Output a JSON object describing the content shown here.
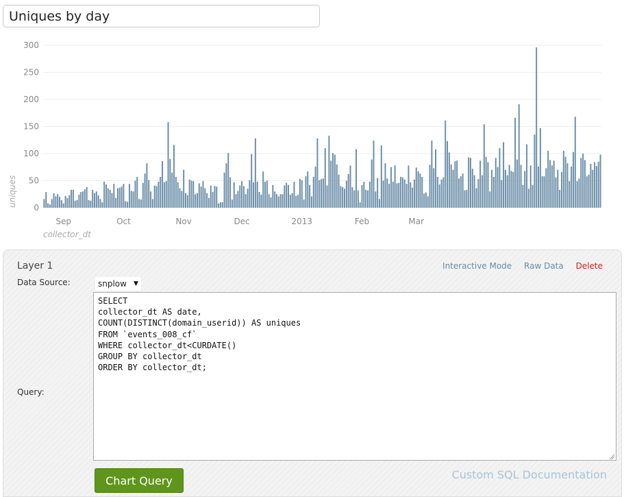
{
  "title_input": {
    "value": "Uniques by day"
  },
  "chart_data": {
    "type": "bar",
    "bar_color": "#6b8ea8",
    "grid": true,
    "ylabel": "uniques",
    "xlabel": "collector_dt",
    "ylim": [
      0,
      300
    ],
    "y_ticks": [
      "0",
      "50",
      "100",
      "150",
      "200",
      "250",
      "300"
    ],
    "x_tick_labels": [
      {
        "label": "Sep",
        "index": 10
      },
      {
        "label": "Oct",
        "index": 41
      },
      {
        "label": "Nov",
        "index": 72
      },
      {
        "label": "Dec",
        "index": 102
      },
      {
        "label": "2013",
        "index": 133
      },
      {
        "label": "Feb",
        "index": 164
      },
      {
        "label": "Mar",
        "index": 192
      }
    ],
    "values": [
      16,
      29,
      8,
      6,
      16,
      27,
      21,
      25,
      20,
      14,
      8,
      22,
      18,
      23,
      33,
      33,
      13,
      14,
      24,
      29,
      30,
      34,
      38,
      14,
      13,
      33,
      27,
      30,
      23,
      16,
      10,
      48,
      43,
      36,
      33,
      27,
      44,
      18,
      36,
      37,
      39,
      44,
      12,
      11,
      44,
      31,
      30,
      50,
      57,
      16,
      15,
      46,
      63,
      82,
      51,
      30,
      16,
      41,
      40,
      48,
      57,
      86,
      47,
      49,
      158,
      90,
      65,
      116,
      57,
      47,
      36,
      31,
      70,
      27,
      23,
      52,
      50,
      49,
      25,
      27,
      45,
      39,
      49,
      36,
      27,
      18,
      41,
      29,
      40,
      39,
      8,
      10,
      10,
      65,
      82,
      101,
      56,
      15,
      47,
      25,
      31,
      41,
      49,
      40,
      25,
      35,
      51,
      99,
      47,
      128,
      48,
      29,
      24,
      67,
      48,
      50,
      25,
      19,
      42,
      30,
      25,
      21,
      25,
      25,
      41,
      46,
      42,
      24,
      27,
      48,
      22,
      24,
      53,
      51,
      15,
      58,
      67,
      42,
      21,
      57,
      76,
      128,
      51,
      53,
      54,
      110,
      41,
      133,
      87,
      101,
      98,
      80,
      61,
      40,
      38,
      35,
      50,
      62,
      78,
      38,
      32,
      108,
      32,
      10,
      42,
      48,
      33,
      32,
      48,
      89,
      124,
      30,
      55,
      16,
      115,
      50,
      82,
      54,
      44,
      75,
      48,
      78,
      45,
      46,
      57,
      56,
      52,
      44,
      78,
      47,
      37,
      52,
      74,
      67,
      63,
      57,
      26,
      28,
      21,
      79,
      124,
      73,
      108,
      57,
      43,
      52,
      56,
      161,
      123,
      102,
      80,
      70,
      86,
      87,
      54,
      58,
      63,
      32,
      33,
      93,
      92,
      72,
      60,
      36,
      53,
      87,
      60,
      154,
      94,
      84,
      30,
      70,
      57,
      92,
      75,
      110,
      51,
      121,
      70,
      60,
      79,
      68,
      66,
      166,
      89,
      191,
      79,
      42,
      68,
      117,
      35,
      78,
      42,
      135,
      296,
      76,
      147,
      58,
      58,
      73,
      105,
      88,
      78,
      87,
      56,
      70,
      33,
      66,
      105,
      94,
      82,
      49,
      76,
      103,
      168,
      49,
      54,
      92,
      100,
      88,
      58,
      61,
      81,
      70,
      84,
      77,
      85,
      98
    ]
  },
  "layer": {
    "title": "Layer 1",
    "links": {
      "interactive": "Interactive Mode",
      "raw_data": "Raw Data",
      "delete": "Delete"
    },
    "data_source_label": "Data Source:",
    "data_source_value": "snplow",
    "query_label": "Query:",
    "query": "SELECT\ncollector_dt AS date,\nCOUNT(DISTINCT(domain_userid)) AS uniques\nFROM `events_008_cf`\nWHERE collector_dt<CURDATE()\nGROUP BY collector_dt\nORDER BY collector_dt;",
    "chart_button": "Chart Query",
    "doc_link": "Custom SQL Documentation"
  }
}
